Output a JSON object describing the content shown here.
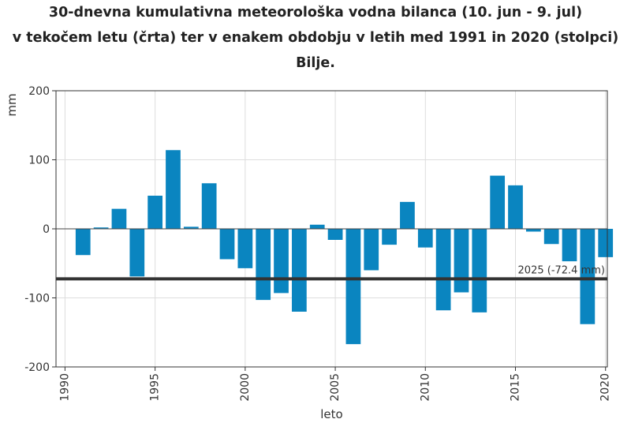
{
  "chart_data": {
    "type": "bar",
    "title_lines": [
      "30-dnevna kumulativna meteorološka vodna bilanca (10. jun - 9. jul)",
      "v tekočem letu (črta) ter v enakem obdobju v letih med 1991 in 2020 (stolpci)",
      "Bilje."
    ],
    "xlabel": "leto",
    "ylabel": "mm",
    "ylim": [
      -200,
      200
    ],
    "xlim": [
      1989.5,
      2020.1
    ],
    "yticks": [
      -200,
      -100,
      0,
      100,
      200
    ],
    "ytick_labels": [
      "-200",
      "-100",
      "0",
      "100",
      "200"
    ],
    "xticks": [
      1990,
      1995,
      2000,
      2005,
      2010,
      2015,
      2020
    ],
    "xtick_labels": [
      "1990",
      "1995",
      "2000",
      "2005",
      "2010",
      "2015",
      "2020"
    ],
    "grid": true,
    "bar_color": "#0a85c0",
    "line_color": "#333333",
    "x": [
      1991,
      1992,
      1993,
      1994,
      1995,
      1996,
      1997,
      1998,
      1999,
      2000,
      2001,
      2002,
      2003,
      2004,
      2005,
      2006,
      2007,
      2008,
      2009,
      2010,
      2011,
      2012,
      2013,
      2014,
      2015,
      2016,
      2017,
      2018,
      2019,
      2020
    ],
    "values": [
      -38,
      2,
      29,
      -69,
      48,
      114,
      3,
      66,
      -44,
      -57,
      -103,
      -93,
      -120,
      6,
      -16,
      -167,
      -60,
      -23,
      39,
      -27,
      -118,
      -92,
      -121,
      77,
      63,
      -4,
      -22,
      -47,
      -138,
      -41
    ],
    "reference_line": {
      "value": -72.4,
      "label": "2025 (-72.4 mm)"
    }
  }
}
